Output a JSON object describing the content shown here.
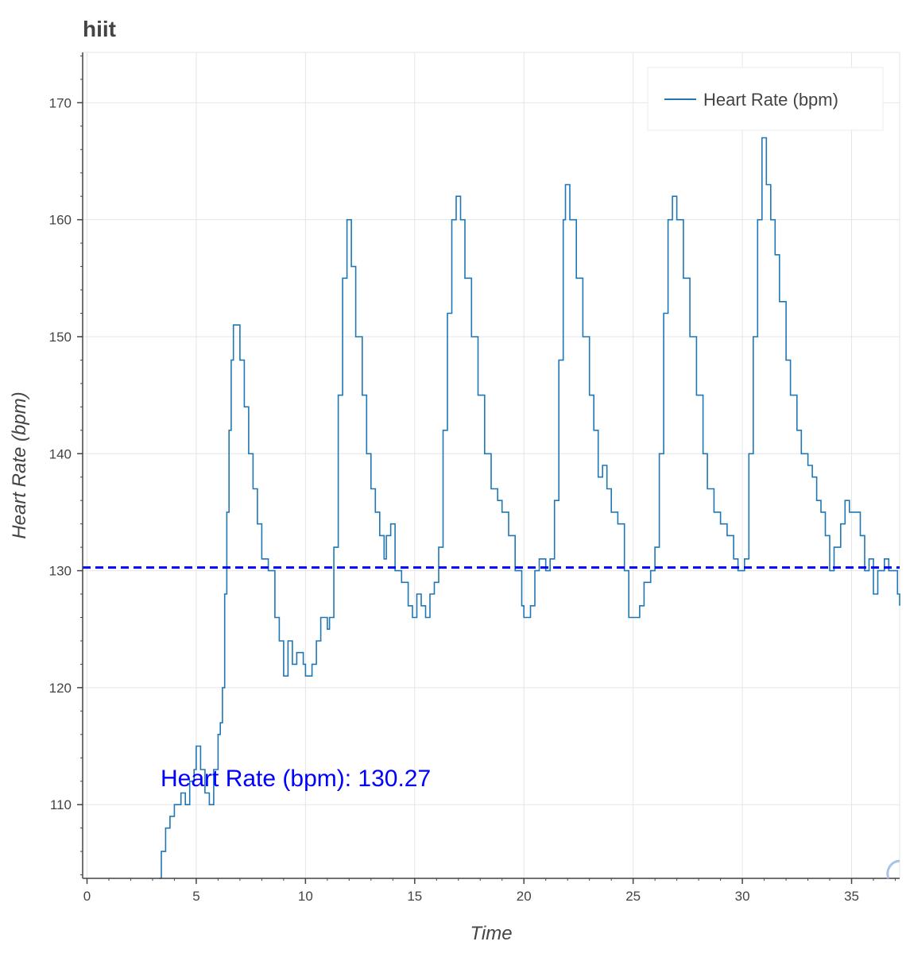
{
  "chart_data": {
    "type": "line",
    "title": "hiit",
    "xlabel": "Time",
    "ylabel": "Heart Rate (bpm)",
    "xlim": [
      -0.2,
      37.2
    ],
    "ylim": [
      103.7,
      174.3
    ],
    "x_ticks": [
      0,
      5,
      10,
      15,
      20,
      25,
      30,
      35
    ],
    "y_ticks": [
      110,
      120,
      130,
      140,
      150,
      160,
      170
    ],
    "grid": true,
    "legend_position": "top-right",
    "line_color": "#1f77b4",
    "mean_line_color": "#0000ff",
    "annotation": {
      "label": "Heart Rate (bpm): 130.27",
      "color": "#0000ff"
    },
    "series": [
      {
        "name": "Heart Rate (bpm)",
        "points": [
          [
            3.3,
            103.7
          ],
          [
            3.4,
            106
          ],
          [
            3.6,
            108
          ],
          [
            3.8,
            109
          ],
          [
            4.0,
            110
          ],
          [
            4.3,
            111
          ],
          [
            4.5,
            110
          ],
          [
            4.7,
            112
          ],
          [
            4.9,
            113
          ],
          [
            5.0,
            115
          ],
          [
            5.2,
            113
          ],
          [
            5.4,
            111
          ],
          [
            5.6,
            110
          ],
          [
            5.8,
            113
          ],
          [
            6.0,
            116
          ],
          [
            6.1,
            117
          ],
          [
            6.2,
            120
          ],
          [
            6.3,
            128
          ],
          [
            6.4,
            135
          ],
          [
            6.5,
            142
          ],
          [
            6.6,
            148
          ],
          [
            6.7,
            151
          ],
          [
            6.9,
            151
          ],
          [
            7.0,
            148
          ],
          [
            7.2,
            144
          ],
          [
            7.4,
            140
          ],
          [
            7.6,
            137
          ],
          [
            7.8,
            134
          ],
          [
            8.0,
            131
          ],
          [
            8.3,
            130
          ],
          [
            8.6,
            126
          ],
          [
            8.8,
            124
          ],
          [
            9.0,
            121
          ],
          [
            9.2,
            124
          ],
          [
            9.4,
            122
          ],
          [
            9.6,
            123
          ],
          [
            9.9,
            122
          ],
          [
            10.0,
            121
          ],
          [
            10.3,
            122
          ],
          [
            10.5,
            124
          ],
          [
            10.7,
            126
          ],
          [
            11.0,
            125
          ],
          [
            11.1,
            126
          ],
          [
            11.3,
            132
          ],
          [
            11.5,
            145
          ],
          [
            11.7,
            155
          ],
          [
            11.9,
            160
          ],
          [
            12.1,
            156
          ],
          [
            12.3,
            150
          ],
          [
            12.6,
            145
          ],
          [
            12.8,
            140
          ],
          [
            13.0,
            137
          ],
          [
            13.2,
            135
          ],
          [
            13.4,
            133
          ],
          [
            13.6,
            131
          ],
          [
            13.7,
            133
          ],
          [
            13.9,
            134
          ],
          [
            14.1,
            130
          ],
          [
            14.4,
            129
          ],
          [
            14.7,
            127
          ],
          [
            14.9,
            126
          ],
          [
            15.1,
            128
          ],
          [
            15.3,
            127
          ],
          [
            15.5,
            126
          ],
          [
            15.7,
            128
          ],
          [
            15.9,
            129
          ],
          [
            16.1,
            132
          ],
          [
            16.3,
            142
          ],
          [
            16.5,
            152
          ],
          [
            16.7,
            160
          ],
          [
            16.9,
            162
          ],
          [
            17.1,
            160
          ],
          [
            17.3,
            155
          ],
          [
            17.6,
            150
          ],
          [
            17.9,
            145
          ],
          [
            18.2,
            140
          ],
          [
            18.5,
            137
          ],
          [
            18.8,
            136
          ],
          [
            19.0,
            135
          ],
          [
            19.3,
            133
          ],
          [
            19.6,
            130
          ],
          [
            19.9,
            127
          ],
          [
            20.0,
            126
          ],
          [
            20.3,
            127
          ],
          [
            20.5,
            130
          ],
          [
            20.7,
            131
          ],
          [
            21.0,
            130
          ],
          [
            21.2,
            131
          ],
          [
            21.4,
            136
          ],
          [
            21.6,
            148
          ],
          [
            21.8,
            160
          ],
          [
            21.9,
            163
          ],
          [
            22.1,
            160
          ],
          [
            22.4,
            155
          ],
          [
            22.7,
            150
          ],
          [
            23.0,
            145
          ],
          [
            23.2,
            142
          ],
          [
            23.4,
            138
          ],
          [
            23.6,
            139
          ],
          [
            23.8,
            137
          ],
          [
            24.0,
            135
          ],
          [
            24.3,
            134
          ],
          [
            24.6,
            130
          ],
          [
            24.8,
            126
          ],
          [
            25.1,
            126
          ],
          [
            25.3,
            127
          ],
          [
            25.5,
            129
          ],
          [
            25.8,
            130
          ],
          [
            26.0,
            132
          ],
          [
            26.2,
            140
          ],
          [
            26.4,
            152
          ],
          [
            26.6,
            160
          ],
          [
            26.8,
            162
          ],
          [
            27.0,
            160
          ],
          [
            27.3,
            155
          ],
          [
            27.6,
            150
          ],
          [
            27.9,
            145
          ],
          [
            28.2,
            140
          ],
          [
            28.4,
            137
          ],
          [
            28.7,
            135
          ],
          [
            29.0,
            134
          ],
          [
            29.3,
            133
          ],
          [
            29.6,
            131
          ],
          [
            29.8,
            130
          ],
          [
            30.1,
            131
          ],
          [
            30.3,
            140
          ],
          [
            30.5,
            150
          ],
          [
            30.7,
            160
          ],
          [
            30.9,
            167
          ],
          [
            31.1,
            163
          ],
          [
            31.3,
            160
          ],
          [
            31.5,
            157
          ],
          [
            31.7,
            153
          ],
          [
            32.0,
            148
          ],
          [
            32.2,
            145
          ],
          [
            32.5,
            142
          ],
          [
            32.7,
            140
          ],
          [
            33.0,
            139
          ],
          [
            33.2,
            138
          ],
          [
            33.4,
            136
          ],
          [
            33.6,
            135
          ],
          [
            33.8,
            133
          ],
          [
            34.0,
            130
          ],
          [
            34.2,
            132
          ],
          [
            34.5,
            134
          ],
          [
            34.7,
            136
          ],
          [
            34.9,
            135
          ],
          [
            35.2,
            135
          ],
          [
            35.4,
            133
          ],
          [
            35.6,
            130
          ],
          [
            35.8,
            131
          ],
          [
            36.0,
            128
          ],
          [
            36.2,
            130
          ],
          [
            36.5,
            131
          ],
          [
            36.7,
            130
          ],
          [
            36.9,
            130
          ],
          [
            37.1,
            128
          ],
          [
            37.2,
            127
          ]
        ]
      }
    ],
    "mean_value": 130.27
  }
}
